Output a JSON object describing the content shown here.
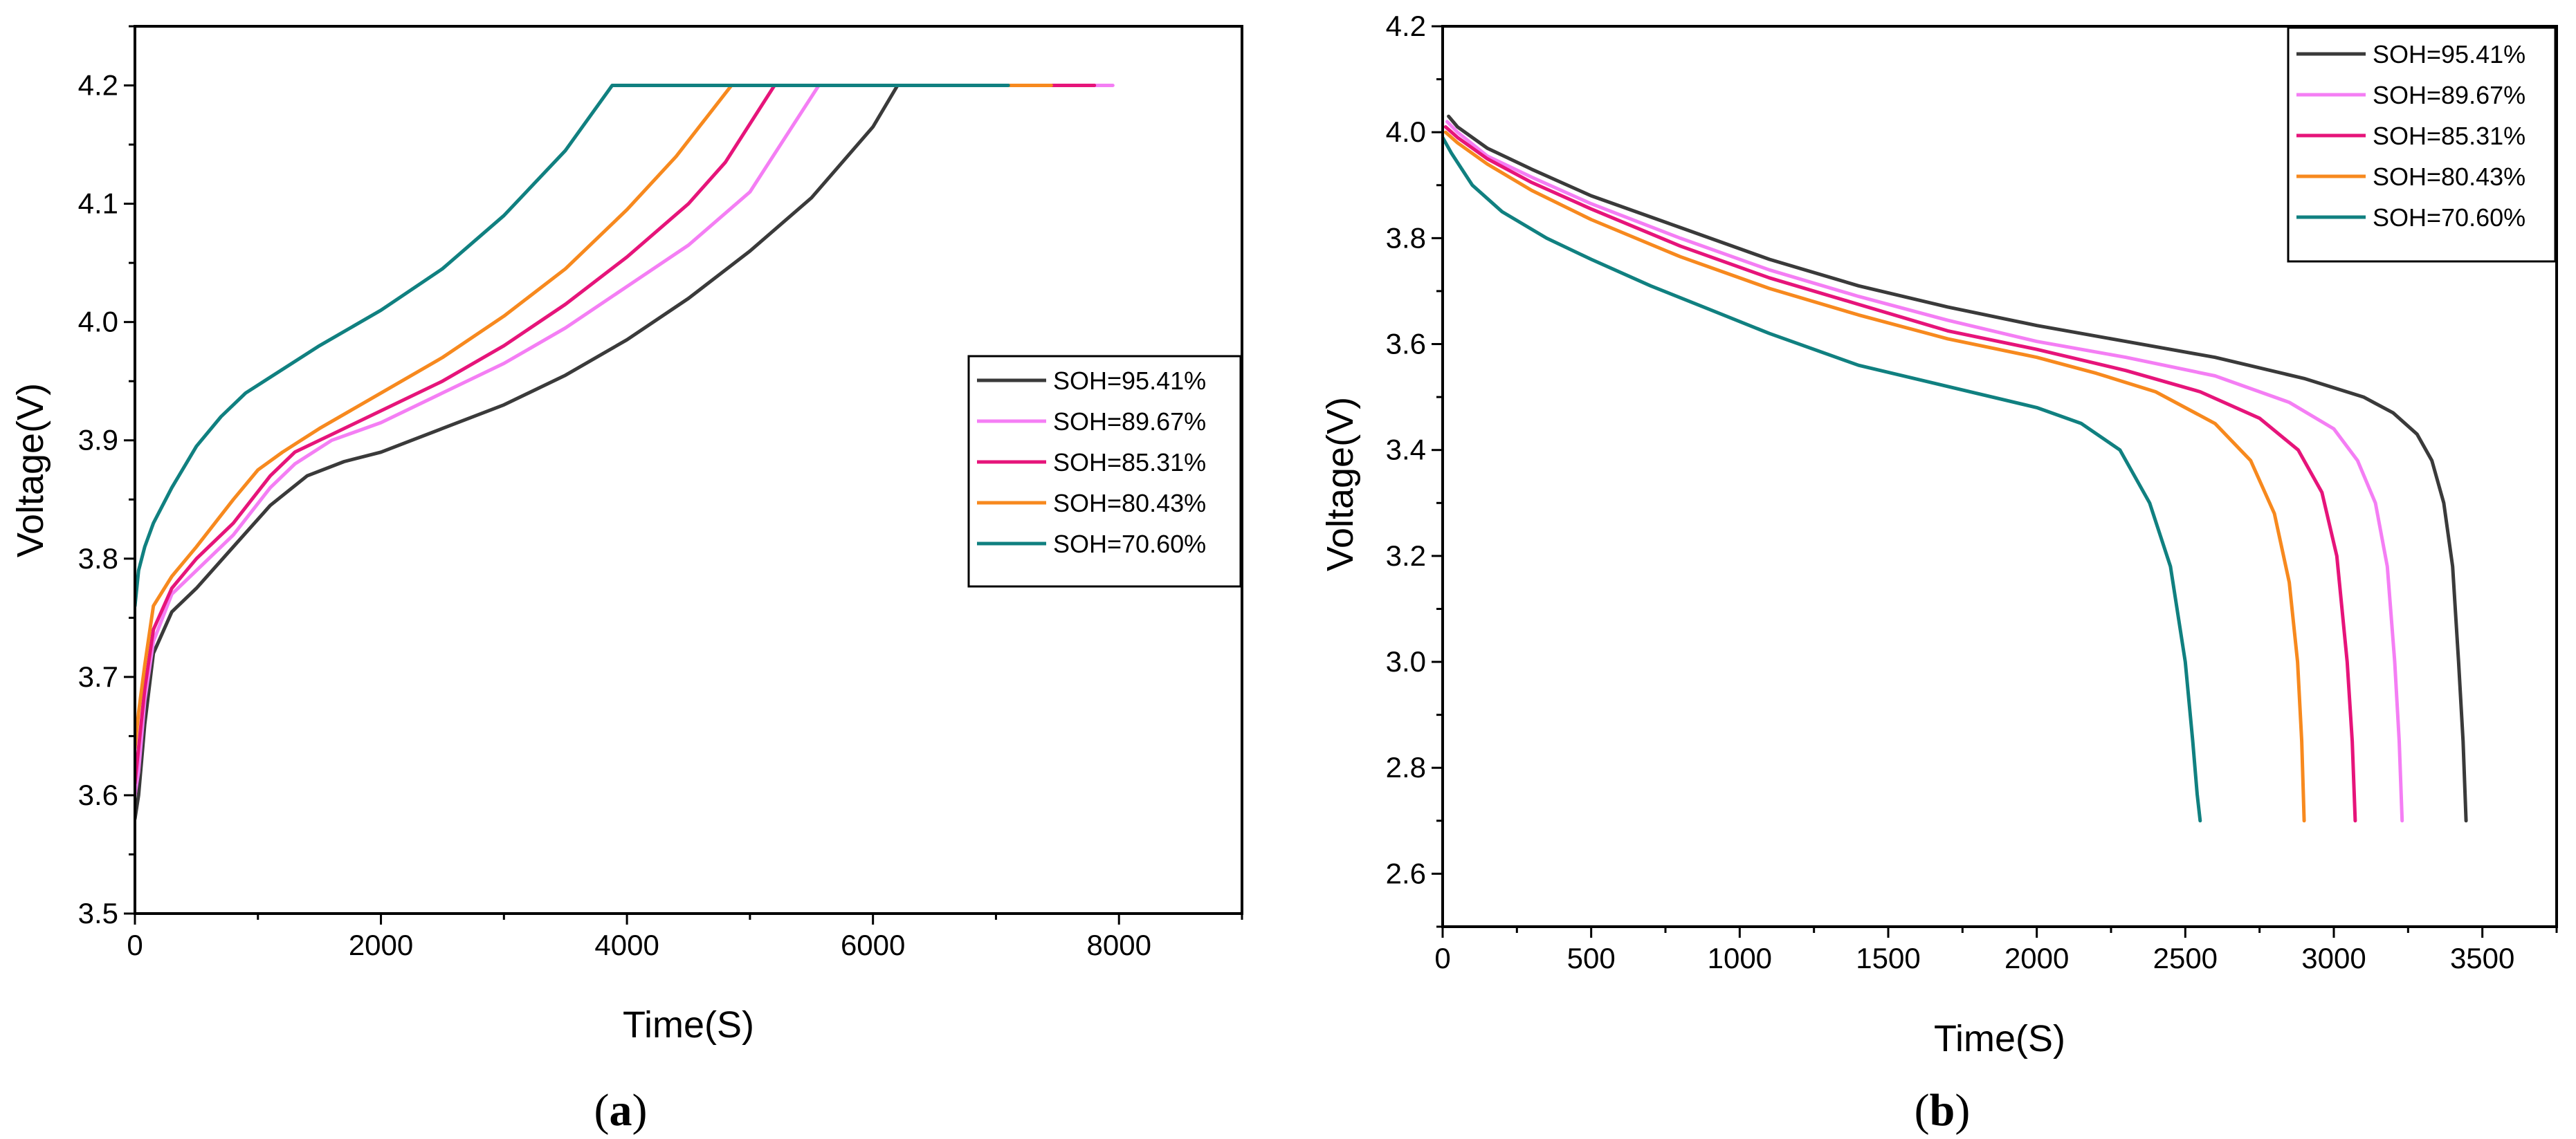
{
  "colors": {
    "SOH=95.41%": "#3a3a3a",
    "SOH=89.67%": "#f47ef4",
    "SOH=85.31%": "#e6147a",
    "SOH=80.43%": "#f7891e",
    "SOH=70.60%": "#108080"
  },
  "chart_data": [
    {
      "panel": "a",
      "panel_label": "a",
      "type": "line",
      "title": "",
      "xlabel": "Time(S)",
      "ylabel": "Voltage(V)",
      "xlim": [
        0,
        9000
      ],
      "ylim": [
        3.5,
        4.25
      ],
      "xticks": [
        "0",
        "2000",
        "4000",
        "6000",
        "8000"
      ],
      "yticks": [
        "3.5",
        "3.6",
        "3.7",
        "3.8",
        "3.9",
        "4.0",
        "4.1",
        "4.2"
      ],
      "legend_position": "center-right",
      "series": [
        {
          "name": "SOH=95.41%",
          "x": [
            0,
            30,
            80,
            150,
            300,
            500,
            800,
            1100,
            1400,
            1700,
            2000,
            2500,
            3000,
            3500,
            4000,
            4500,
            5000,
            5500,
            6000,
            6200,
            6500,
            7000,
            7500,
            7700
          ],
          "y": [
            3.58,
            3.6,
            3.66,
            3.72,
            3.755,
            3.775,
            3.81,
            3.845,
            3.87,
            3.882,
            3.89,
            3.91,
            3.93,
            3.955,
            3.985,
            4.02,
            4.06,
            4.105,
            4.165,
            4.2,
            4.2,
            4.2,
            4.2,
            4.2
          ]
        },
        {
          "name": "SOH=89.67%",
          "x": [
            0,
            30,
            80,
            150,
            300,
            500,
            800,
            1100,
            1300,
            1600,
            2000,
            2500,
            3000,
            3500,
            4000,
            4500,
            5000,
            5560,
            6000,
            7000,
            7500,
            7900,
            7950
          ],
          "y": [
            3.6,
            3.62,
            3.68,
            3.73,
            3.77,
            3.79,
            3.82,
            3.86,
            3.88,
            3.9,
            3.915,
            3.94,
            3.965,
            3.995,
            4.03,
            4.065,
            4.11,
            4.2,
            4.2,
            4.2,
            4.2,
            4.2,
            4.2
          ]
        },
        {
          "name": "SOH=85.31%",
          "x": [
            0,
            30,
            80,
            150,
            300,
            500,
            800,
            1100,
            1300,
            1600,
            2000,
            2500,
            3000,
            3500,
            4000,
            4500,
            4800,
            5200,
            6000,
            7000,
            7500,
            7800
          ],
          "y": [
            3.61,
            3.64,
            3.69,
            3.74,
            3.775,
            3.8,
            3.83,
            3.87,
            3.89,
            3.905,
            3.925,
            3.95,
            3.98,
            4.015,
            4.055,
            4.1,
            4.135,
            4.2,
            4.2,
            4.2,
            4.2,
            4.2
          ]
        },
        {
          "name": "SOH=80.43%",
          "x": [
            0,
            30,
            80,
            150,
            300,
            500,
            800,
            1000,
            1200,
            1500,
            2000,
            2500,
            3000,
            3500,
            4000,
            4400,
            4850,
            5500,
            6500,
            7400,
            7450
          ],
          "y": [
            3.64,
            3.67,
            3.71,
            3.76,
            3.785,
            3.81,
            3.85,
            3.875,
            3.89,
            3.91,
            3.94,
            3.97,
            4.005,
            4.045,
            4.095,
            4.14,
            4.2,
            4.2,
            4.2,
            4.2,
            4.2
          ]
        },
        {
          "name": "SOH=70.60%",
          "x": [
            0,
            30,
            80,
            150,
            300,
            500,
            700,
            900,
            1200,
            1500,
            2000,
            2500,
            3000,
            3500,
            3880,
            4500,
            5500,
            6500,
            7000,
            7100
          ],
          "y": [
            3.76,
            3.79,
            3.81,
            3.83,
            3.86,
            3.895,
            3.92,
            3.94,
            3.96,
            3.98,
            4.01,
            4.045,
            4.09,
            4.145,
            4.2,
            4.2,
            4.2,
            4.2,
            4.2,
            4.2
          ]
        }
      ]
    },
    {
      "panel": "b",
      "panel_label": "b",
      "type": "line",
      "title": "",
      "xlabel": "Time(S)",
      "ylabel": "Voltage(V)",
      "xlim": [
        0,
        3750
      ],
      "ylim": [
        2.5,
        4.2
      ],
      "xticks": [
        "0",
        "500",
        "1000",
        "1500",
        "2000",
        "2500",
        "3000",
        "3500"
      ],
      "yticks": [
        "2.6",
        "2.8",
        "3.0",
        "3.2",
        "3.4",
        "3.6",
        "3.8",
        "4.0",
        "4.2"
      ],
      "legend_position": "top-right",
      "series": [
        {
          "name": "SOH=95.41%",
          "x": [
            20,
            50,
            150,
            300,
            500,
            800,
            1100,
            1400,
            1700,
            2000,
            2300,
            2600,
            2900,
            3100,
            3200,
            3280,
            3330,
            3370,
            3400,
            3420,
            3435,
            3445
          ],
          "y": [
            4.03,
            4.01,
            3.97,
            3.93,
            3.88,
            3.82,
            3.76,
            3.71,
            3.67,
            3.635,
            3.605,
            3.575,
            3.535,
            3.5,
            3.47,
            3.43,
            3.38,
            3.3,
            3.18,
            3.0,
            2.85,
            2.7
          ]
        },
        {
          "name": "SOH=89.67%",
          "x": [
            15,
            50,
            150,
            300,
            500,
            800,
            1100,
            1400,
            1700,
            2000,
            2300,
            2600,
            2850,
            3000,
            3080,
            3140,
            3180,
            3205,
            3220,
            3230
          ],
          "y": [
            4.02,
            4.0,
            3.955,
            3.915,
            3.865,
            3.8,
            3.74,
            3.69,
            3.645,
            3.605,
            3.575,
            3.54,
            3.49,
            3.44,
            3.38,
            3.3,
            3.18,
            3.0,
            2.85,
            2.7
          ]
        },
        {
          "name": "SOH=85.31%",
          "x": [
            10,
            50,
            150,
            300,
            500,
            800,
            1100,
            1400,
            1700,
            2000,
            2300,
            2550,
            2750,
            2880,
            2960,
            3010,
            3045,
            3062,
            3072
          ],
          "y": [
            4.01,
            3.99,
            3.95,
            3.905,
            3.855,
            3.785,
            3.725,
            3.675,
            3.625,
            3.59,
            3.55,
            3.51,
            3.46,
            3.4,
            3.32,
            3.2,
            3.0,
            2.85,
            2.7
          ]
        },
        {
          "name": "SOH=80.43%",
          "x": [
            10,
            50,
            150,
            300,
            500,
            800,
            1100,
            1400,
            1700,
            2000,
            2200,
            2400,
            2600,
            2720,
            2800,
            2850,
            2878,
            2892,
            2900
          ],
          "y": [
            4.0,
            3.98,
            3.94,
            3.89,
            3.835,
            3.765,
            3.705,
            3.655,
            3.61,
            3.575,
            3.545,
            3.51,
            3.45,
            3.38,
            3.28,
            3.15,
            3.0,
            2.85,
            2.7
          ]
        },
        {
          "name": "SOH=70.60%",
          "x": [
            0,
            30,
            100,
            200,
            350,
            500,
            700,
            900,
            1100,
            1400,
            1700,
            2000,
            2150,
            2280,
            2380,
            2450,
            2500,
            2525,
            2540,
            2550
          ],
          "y": [
            3.99,
            3.96,
            3.9,
            3.85,
            3.8,
            3.76,
            3.71,
            3.665,
            3.62,
            3.56,
            3.52,
            3.48,
            3.45,
            3.4,
            3.3,
            3.18,
            3.0,
            2.85,
            2.75,
            2.7
          ]
        }
      ]
    }
  ]
}
